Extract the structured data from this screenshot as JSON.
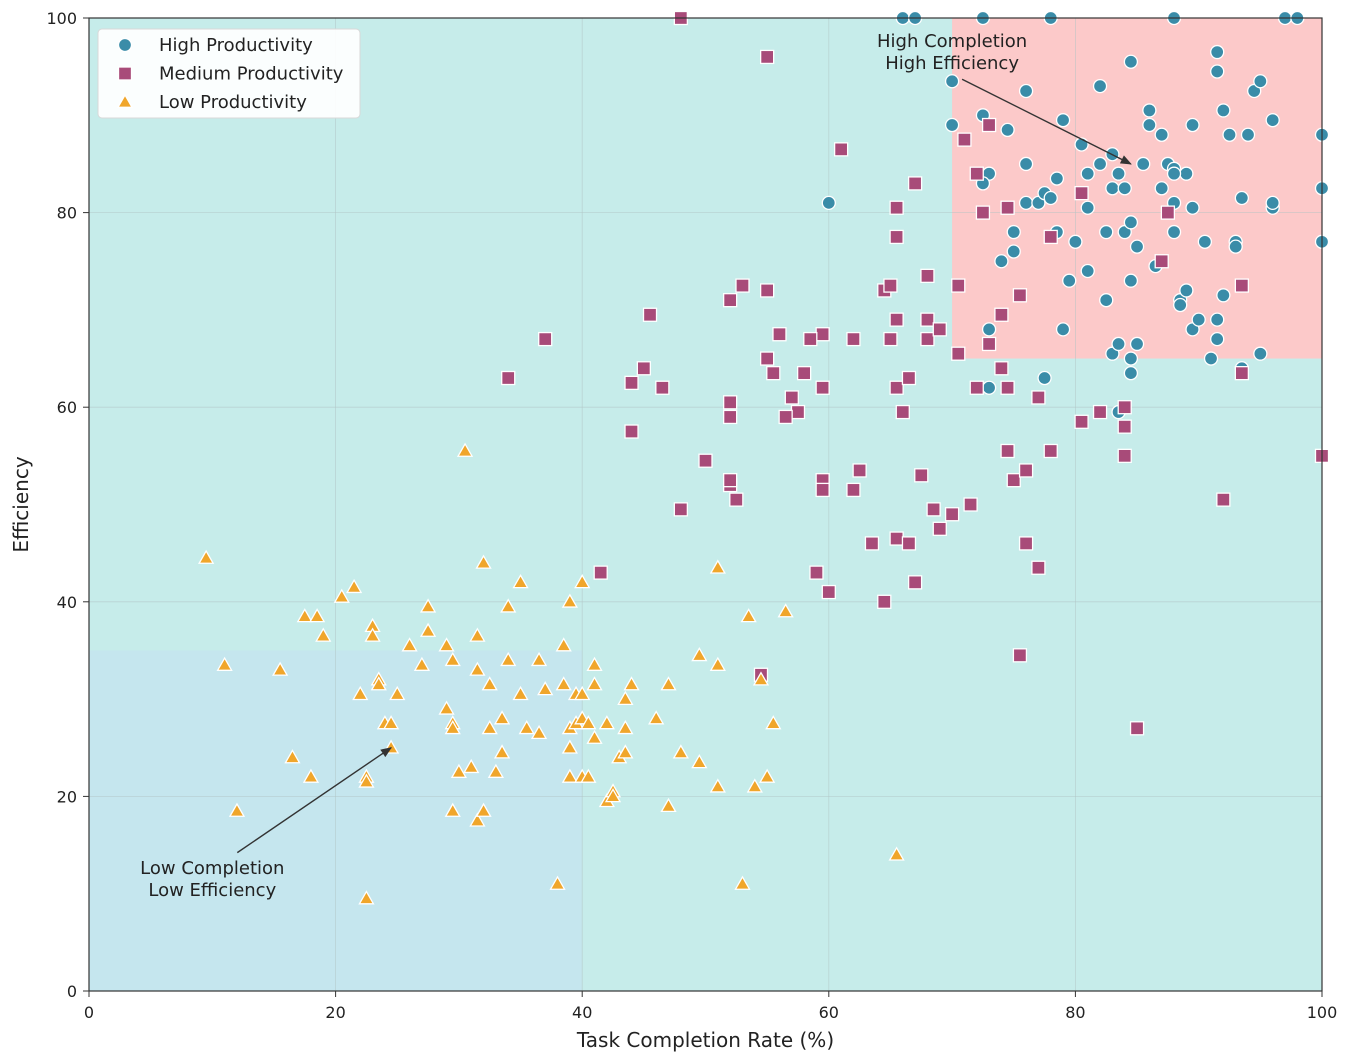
{
  "chart_data": {
    "type": "scatter",
    "xlabel": "Task Completion Rate (%)",
    "ylabel": "Efficiency",
    "xlim": [
      0,
      100
    ],
    "ylim": [
      0,
      100
    ],
    "xticks": [
      "0",
      "20",
      "40",
      "60",
      "80",
      "100"
    ],
    "yticks": [
      "0",
      "20",
      "40",
      "60",
      "80",
      "100"
    ],
    "grid": true,
    "legend_position": "top-left",
    "background_color": "#c6ecea",
    "regions": [
      {
        "x0": 0,
        "x1": 40,
        "y0": 0,
        "y1": 35,
        "color": "#c5e6ee"
      },
      {
        "x0": 70,
        "x1": 100,
        "y0": 65,
        "y1": 100,
        "color": "#fcc9c9"
      }
    ],
    "annotations": [
      {
        "lines": [
          "High Completion",
          "High Efficiency"
        ],
        "text_at": [
          70,
          97
        ],
        "arrow_to": [
          84.5,
          85
        ]
      },
      {
        "lines": [
          "Low Completion",
          "Low Efficiency"
        ],
        "text_at": [
          10,
          12
        ],
        "arrow_to": [
          24.5,
          25
        ]
      }
    ],
    "series": [
      {
        "name": "High Productivity",
        "marker": "circle",
        "color": "#3a8ca8",
        "points": [
          [
            60,
            81
          ],
          [
            66,
            100
          ],
          [
            67,
            100
          ],
          [
            70,
            93.5
          ],
          [
            70,
            89
          ],
          [
            72.5,
            90
          ],
          [
            73,
            84
          ],
          [
            72.5,
            83
          ],
          [
            73,
            68
          ],
          [
            73,
            62
          ],
          [
            74,
            75
          ],
          [
            74.5,
            88.5
          ],
          [
            75,
            78
          ],
          [
            75,
            76
          ],
          [
            76,
            85
          ],
          [
            76,
            81
          ],
          [
            76,
            92.5
          ],
          [
            77,
            81
          ],
          [
            77.5,
            82
          ],
          [
            78,
            81.5
          ],
          [
            78.5,
            83.5
          ],
          [
            78.5,
            78
          ],
          [
            79,
            89.5
          ],
          [
            79,
            68
          ],
          [
            79.5,
            73
          ],
          [
            77.5,
            63
          ],
          [
            80,
            77
          ],
          [
            80.5,
            87
          ],
          [
            81,
            84
          ],
          [
            81,
            80.5
          ],
          [
            81,
            74
          ],
          [
            82,
            93
          ],
          [
            82,
            85
          ],
          [
            82.5,
            78
          ],
          [
            82.5,
            71
          ],
          [
            83,
            86
          ],
          [
            83,
            82.5
          ],
          [
            83,
            65.5
          ],
          [
            83.5,
            66.5
          ],
          [
            83.5,
            59.5
          ],
          [
            83.5,
            84
          ],
          [
            84,
            78
          ],
          [
            84,
            82.5
          ],
          [
            84.5,
            79
          ],
          [
            84.5,
            73
          ],
          [
            84.5,
            65
          ],
          [
            84.5,
            63.5
          ],
          [
            84.5,
            95.5
          ],
          [
            85,
            76.5
          ],
          [
            85,
            66.5
          ],
          [
            85.5,
            85
          ],
          [
            86,
            90.5
          ],
          [
            86,
            89
          ],
          [
            86.5,
            74.5
          ],
          [
            87,
            82.5
          ],
          [
            87,
            88
          ],
          [
            87.5,
            85
          ],
          [
            88,
            84.5
          ],
          [
            88,
            81
          ],
          [
            88,
            78
          ],
          [
            88.5,
            71
          ],
          [
            88.5,
            70.5
          ],
          [
            89,
            84
          ],
          [
            89,
            72
          ],
          [
            89.5,
            80.5
          ],
          [
            89.5,
            68
          ],
          [
            89.5,
            89
          ],
          [
            90,
            69
          ],
          [
            90.5,
            77
          ],
          [
            91,
            65
          ],
          [
            91.5,
            69
          ],
          [
            91.5,
            67
          ],
          [
            91.5,
            94.5
          ],
          [
            91.5,
            96.5
          ],
          [
            92,
            90.5
          ],
          [
            92,
            71.5
          ],
          [
            92.5,
            88
          ],
          [
            93,
            77
          ],
          [
            93,
            76.5
          ],
          [
            93.5,
            81.5
          ],
          [
            93.5,
            64
          ],
          [
            94,
            88
          ],
          [
            94.5,
            92.5
          ],
          [
            95,
            93.5
          ],
          [
            95,
            65.5
          ],
          [
            96,
            89.5
          ],
          [
            96,
            80.5
          ],
          [
            96,
            81
          ],
          [
            97,
            100
          ],
          [
            98,
            100
          ],
          [
            100,
            88
          ],
          [
            100,
            82.5
          ],
          [
            100,
            77
          ],
          [
            72.5,
            100
          ],
          [
            78,
            100
          ],
          [
            88,
            84
          ],
          [
            88,
            100
          ]
        ]
      },
      {
        "name": "Medium Productivity",
        "marker": "square",
        "color": "#a84b79",
        "points": [
          [
            48,
            100
          ],
          [
            55,
            96
          ],
          [
            61,
            86.5
          ],
          [
            67,
            83
          ],
          [
            65.5,
            80.5
          ],
          [
            65.5,
            77.5
          ],
          [
            64.5,
            72
          ],
          [
            65,
            72.5
          ],
          [
            65.5,
            69
          ],
          [
            65,
            67
          ],
          [
            65.5,
            62
          ],
          [
            66,
            59.5
          ],
          [
            66.5,
            63
          ],
          [
            65.5,
            46.5
          ],
          [
            66.5,
            46
          ],
          [
            67,
            42
          ],
          [
            64.5,
            40
          ],
          [
            63.5,
            46
          ],
          [
            62,
            51.5
          ],
          [
            62.5,
            53.5
          ],
          [
            62,
            67
          ],
          [
            59.5,
            67.5
          ],
          [
            58.5,
            67
          ],
          [
            59,
            43
          ],
          [
            59.5,
            52.5
          ],
          [
            59.5,
            51.5
          ],
          [
            60,
            41
          ],
          [
            59.5,
            62
          ],
          [
            57,
            61
          ],
          [
            57.5,
            59.5
          ],
          [
            56.5,
            59
          ],
          [
            56,
            67.5
          ],
          [
            55,
            72
          ],
          [
            55.5,
            63.5
          ],
          [
            55,
            65
          ],
          [
            53,
            72.5
          ],
          [
            52,
            71
          ],
          [
            52,
            60.5
          ],
          [
            52,
            59
          ],
          [
            52,
            52
          ],
          [
            52.5,
            50.5
          ],
          [
            52,
            52.5
          ],
          [
            54.5,
            32.5
          ],
          [
            50,
            54.5
          ],
          [
            48,
            49.5
          ],
          [
            46.5,
            62
          ],
          [
            45.5,
            69.5
          ],
          [
            44,
            62.5
          ],
          [
            44,
            57.5
          ],
          [
            45,
            64
          ],
          [
            41.5,
            43
          ],
          [
            37,
            67
          ],
          [
            34,
            63
          ],
          [
            58,
            63.5
          ],
          [
            68,
            73.5
          ],
          [
            68,
            69
          ],
          [
            68,
            67
          ],
          [
            67.5,
            53
          ],
          [
            69,
            68
          ],
          [
            68.5,
            49.5
          ],
          [
            69,
            47.5
          ],
          [
            70,
            49
          ],
          [
            70.5,
            72.5
          ],
          [
            70.5,
            65.5
          ],
          [
            71,
            87.5
          ],
          [
            71.5,
            50
          ],
          [
            72,
            62
          ],
          [
            72,
            84
          ],
          [
            72.5,
            80
          ],
          [
            73,
            66.5
          ],
          [
            73,
            89
          ],
          [
            74,
            69.5
          ],
          [
            74,
            64
          ],
          [
            74.5,
            62
          ],
          [
            74.5,
            80.5
          ],
          [
            74.5,
            55.5
          ],
          [
            75,
            52.5
          ],
          [
            75.5,
            34.5
          ],
          [
            75.5,
            71.5
          ],
          [
            76,
            46
          ],
          [
            76,
            53.5
          ],
          [
            77,
            61
          ],
          [
            77,
            43.5
          ],
          [
            78,
            55.5
          ],
          [
            78,
            77.5
          ],
          [
            80.5,
            58.5
          ],
          [
            80.5,
            82
          ],
          [
            82,
            59.5
          ],
          [
            84,
            60
          ],
          [
            84,
            58
          ],
          [
            84,
            55
          ],
          [
            85,
            27
          ],
          [
            87,
            75
          ],
          [
            92,
            50.5
          ],
          [
            93.5,
            63.5
          ],
          [
            93.5,
            72.5
          ],
          [
            100,
            55
          ],
          [
            87.5,
            80
          ]
        ]
      },
      {
        "name": "Low Productivity",
        "marker": "triangle",
        "color": "#f0a62b",
        "points": [
          [
            9.5,
            44.5
          ],
          [
            11,
            33.5
          ],
          [
            12,
            18.5
          ],
          [
            15.5,
            33
          ],
          [
            16.5,
            24
          ],
          [
            17.5,
            38.5
          ],
          [
            18,
            22
          ],
          [
            18.5,
            38.5
          ],
          [
            19,
            36.5
          ],
          [
            20.5,
            40.5
          ],
          [
            21.5,
            41.5
          ],
          [
            22,
            30.5
          ],
          [
            22.5,
            22
          ],
          [
            22.5,
            21.5
          ],
          [
            22.5,
            9.5
          ],
          [
            23,
            37.5
          ],
          [
            23,
            36.5
          ],
          [
            23.5,
            32
          ],
          [
            23.5,
            31.5
          ],
          [
            24,
            27.5
          ],
          [
            24.5,
            25
          ],
          [
            24.5,
            27.5
          ],
          [
            25,
            30.5
          ],
          [
            26,
            35.5
          ],
          [
            27,
            33.5
          ],
          [
            27.5,
            37
          ],
          [
            27.5,
            39.5
          ],
          [
            29,
            29
          ],
          [
            29,
            35.5
          ],
          [
            29.5,
            27.5
          ],
          [
            29.5,
            27
          ],
          [
            29.5,
            34
          ],
          [
            30,
            22.5
          ],
          [
            29.5,
            18.5
          ],
          [
            30.5,
            55.5
          ],
          [
            31,
            23
          ],
          [
            31.5,
            33
          ],
          [
            31.5,
            36.5
          ],
          [
            31.5,
            17.5
          ],
          [
            32,
            44
          ],
          [
            32,
            18.5
          ],
          [
            32.5,
            27
          ],
          [
            32.5,
            31.5
          ],
          [
            33,
            22.5
          ],
          [
            33.5,
            24.5
          ],
          [
            33.5,
            28
          ],
          [
            34,
            39.5
          ],
          [
            34,
            34
          ],
          [
            35,
            30.5
          ],
          [
            35,
            42
          ],
          [
            35.5,
            27
          ],
          [
            36.5,
            34
          ],
          [
            36.5,
            26.5
          ],
          [
            37,
            31
          ],
          [
            38,
            11
          ],
          [
            38.5,
            35.5
          ],
          [
            38.5,
            31.5
          ],
          [
            39,
            40
          ],
          [
            39,
            25
          ],
          [
            39,
            22
          ],
          [
            39,
            27
          ],
          [
            39.5,
            30.5
          ],
          [
            39.5,
            27.5
          ],
          [
            40,
            22
          ],
          [
            40,
            28
          ],
          [
            40,
            30.5
          ],
          [
            40,
            42
          ],
          [
            40.5,
            27.5
          ],
          [
            40.5,
            22
          ],
          [
            41,
            33.5
          ],
          [
            41,
            31.5
          ],
          [
            41,
            26
          ],
          [
            42,
            19.5
          ],
          [
            42,
            27.5
          ],
          [
            42.5,
            20.5
          ],
          [
            42.5,
            20
          ],
          [
            43,
            24
          ],
          [
            43.5,
            24.5
          ],
          [
            43.5,
            27
          ],
          [
            43.5,
            30
          ],
          [
            44,
            31.5
          ],
          [
            46,
            28
          ],
          [
            47,
            31.5
          ],
          [
            47,
            19
          ],
          [
            48,
            24.5
          ],
          [
            49.5,
            34.5
          ],
          [
            49.5,
            23.5
          ],
          [
            51,
            43.5
          ],
          [
            51,
            33.5
          ],
          [
            51,
            21
          ],
          [
            53,
            11
          ],
          [
            53.5,
            38.5
          ],
          [
            54,
            21
          ],
          [
            54.5,
            32
          ],
          [
            55,
            22
          ],
          [
            55.5,
            27.5
          ],
          [
            56.5,
            39
          ],
          [
            65.5,
            14
          ]
        ]
      }
    ]
  }
}
